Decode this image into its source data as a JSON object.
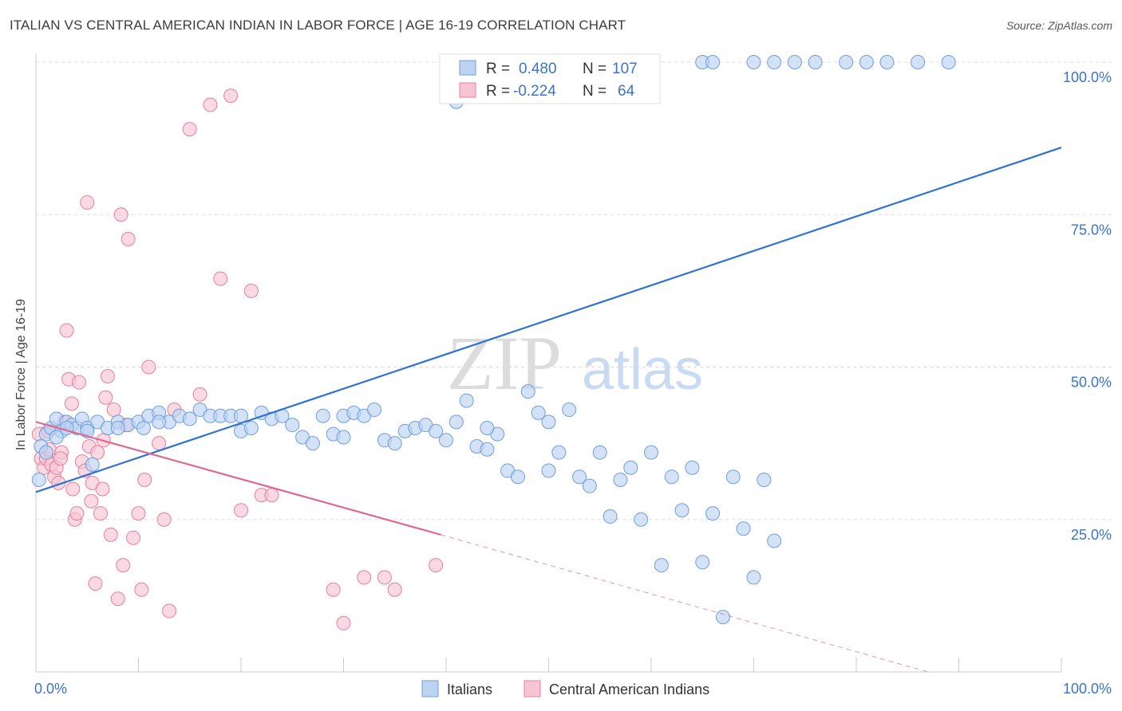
{
  "title": "ITALIAN VS CENTRAL AMERICAN INDIAN IN LABOR FORCE | AGE 16-19 CORRELATION CHART",
  "source": "Source: ZipAtlas.com",
  "watermark": {
    "zip": "ZIP",
    "atlas": "atlas"
  },
  "colors": {
    "blue": "#6f9fde",
    "blue_fill": "#bcd3f2",
    "blue_line": "#2e72d2",
    "pink": "#e77fa0",
    "pink_fill": "#f7c4d3",
    "pink_line": "#e06890",
    "axis_text": "#3a74c9",
    "grid": "#dddddd"
  },
  "legend_box": {
    "rows": [
      {
        "r_label": "R =",
        "r_value": "0.480",
        "n_label": "N =",
        "n_value": "107",
        "color": "blue"
      },
      {
        "r_label": "R =",
        "r_value": "-0.224",
        "n_label": "N =",
        "n_value": "64",
        "color": "pink"
      }
    ]
  },
  "chart_data": {
    "type": "scatter",
    "title": "ITALIAN VS CENTRAL AMERICAN INDIAN IN LABOR FORCE | AGE 16-19 CORRELATION CHART",
    "xlabel": "",
    "ylabel": "In Labor Force | Age 16-19",
    "xlim": [
      0,
      100
    ],
    "ylim": [
      0,
      100
    ],
    "x_tick_labels": [
      "0.0%",
      "100.0%"
    ],
    "y_tick_labels": [
      "25.0%",
      "50.0%",
      "75.0%",
      "100.0%"
    ],
    "y_ticks": [
      25,
      50,
      75,
      100
    ],
    "grid": true,
    "legend_position": "bottom-center",
    "series": [
      {
        "name": "Italians",
        "color": "blue",
        "R": 0.48,
        "N": 107,
        "trend": {
          "x": [
            0,
            100
          ],
          "y": [
            29.5,
            86.0
          ],
          "dashed_from": null
        },
        "points": [
          [
            0.3,
            31.5
          ],
          [
            0.5,
            37
          ],
          [
            1,
            39
          ],
          [
            1.5,
            40
          ],
          [
            2,
            41.5
          ],
          [
            2.5,
            39.5
          ],
          [
            3,
            41
          ],
          [
            3.5,
            40.5
          ],
          [
            4,
            40
          ],
          [
            4.5,
            41.5
          ],
          [
            5,
            40
          ],
          [
            5.5,
            34
          ],
          [
            6,
            41
          ],
          [
            7,
            40
          ],
          [
            8,
            41
          ],
          [
            9,
            40.5
          ],
          [
            10,
            41
          ],
          [
            10.5,
            40
          ],
          [
            11,
            42
          ],
          [
            12,
            42.5
          ],
          [
            13,
            41
          ],
          [
            14,
            42
          ],
          [
            15,
            41.5
          ],
          [
            16,
            43
          ],
          [
            17,
            42
          ],
          [
            18,
            42
          ],
          [
            19,
            42
          ],
          [
            20,
            39.5
          ],
          [
            21,
            40
          ],
          [
            22,
            42.5
          ],
          [
            23,
            41.5
          ],
          [
            24,
            42
          ],
          [
            25,
            40.5
          ],
          [
            26,
            38.5
          ],
          [
            27,
            37.5
          ],
          [
            28,
            42
          ],
          [
            29,
            39
          ],
          [
            30,
            42
          ],
          [
            31,
            42.5
          ],
          [
            32,
            42
          ],
          [
            33,
            43
          ],
          [
            34,
            38
          ],
          [
            35,
            37.5
          ],
          [
            36,
            39.5
          ],
          [
            37,
            40
          ],
          [
            38,
            40.5
          ],
          [
            39,
            39.5
          ],
          [
            40,
            38
          ],
          [
            41,
            41
          ],
          [
            42,
            44.5
          ],
          [
            43,
            37
          ],
          [
            44,
            36.5
          ],
          [
            45,
            39
          ],
          [
            46,
            33
          ],
          [
            47,
            32
          ],
          [
            48,
            46
          ],
          [
            49,
            42.5
          ],
          [
            50,
            41
          ],
          [
            51,
            36
          ],
          [
            52,
            43
          ],
          [
            53,
            32
          ],
          [
            54,
            30.5
          ],
          [
            55,
            36
          ],
          [
            56,
            25.5
          ],
          [
            57,
            31.5
          ],
          [
            58,
            33.5
          ],
          [
            59,
            25
          ],
          [
            60,
            36
          ],
          [
            61,
            17.5
          ],
          [
            62,
            32
          ],
          [
            63,
            26.5
          ],
          [
            64,
            33.5
          ],
          [
            65,
            18
          ],
          [
            66,
            26
          ],
          [
            67,
            9
          ],
          [
            68,
            32
          ],
          [
            69,
            23.5
          ],
          [
            70,
            15.5
          ],
          [
            71,
            31.5
          ],
          [
            72,
            21.5
          ],
          [
            41,
            93.5
          ],
          [
            51,
            100
          ],
          [
            53,
            100
          ],
          [
            55,
            100
          ],
          [
            57,
            100
          ],
          [
            59,
            100
          ],
          [
            65,
            100
          ],
          [
            66,
            100
          ],
          [
            70,
            100
          ],
          [
            72,
            100
          ],
          [
            74,
            100
          ],
          [
            76,
            100
          ],
          [
            79,
            100
          ],
          [
            81,
            100
          ],
          [
            83,
            100
          ],
          [
            86,
            100
          ],
          [
            89,
            100
          ],
          [
            5,
            39.5
          ],
          [
            3,
            40
          ],
          [
            2,
            38.5
          ],
          [
            1,
            36
          ],
          [
            8,
            40
          ],
          [
            12,
            41
          ],
          [
            20,
            42
          ],
          [
            30,
            38.5
          ],
          [
            44,
            40
          ],
          [
            50,
            33
          ]
        ]
      },
      {
        "name": "Central American Indians",
        "color": "pink",
        "R": -0.224,
        "N": 64,
        "trend": {
          "x": [
            0,
            39.5
          ],
          "y": [
            41,
            22.5
          ],
          "dashed_from": 39.5,
          "dashed_to": [
            87,
            0
          ]
        },
        "points": [
          [
            0.3,
            39
          ],
          [
            0.5,
            35
          ],
          [
            0.8,
            33.5
          ],
          [
            1,
            35
          ],
          [
            1.3,
            36.5
          ],
          [
            1.5,
            34
          ],
          [
            1.8,
            32
          ],
          [
            2,
            33.5
          ],
          [
            2.2,
            31
          ],
          [
            2.5,
            36
          ],
          [
            2.8,
            41
          ],
          [
            3,
            56
          ],
          [
            3.2,
            48
          ],
          [
            3.5,
            44
          ],
          [
            3.8,
            25
          ],
          [
            4,
            26
          ],
          [
            4.2,
            47.5
          ],
          [
            4.5,
            34.5
          ],
          [
            4.8,
            33
          ],
          [
            5,
            77
          ],
          [
            5.2,
            37
          ],
          [
            5.5,
            31
          ],
          [
            5.8,
            14.5
          ],
          [
            6,
            36
          ],
          [
            6.3,
            26
          ],
          [
            6.5,
            30
          ],
          [
            6.8,
            45
          ],
          [
            7,
            48.5
          ],
          [
            7.3,
            22.5
          ],
          [
            7.6,
            43
          ],
          [
            8,
            12
          ],
          [
            8.3,
            75
          ],
          [
            8.5,
            17.5
          ],
          [
            8.8,
            40.5
          ],
          [
            9,
            71
          ],
          [
            9.5,
            22
          ],
          [
            10,
            26
          ],
          [
            10.3,
            13.5
          ],
          [
            10.6,
            31.5
          ],
          [
            11,
            50
          ],
          [
            12,
            37.5
          ],
          [
            12.5,
            25
          ],
          [
            13,
            10
          ],
          [
            13.5,
            43
          ],
          [
            15,
            89
          ],
          [
            16,
            45.5
          ],
          [
            17,
            93
          ],
          [
            18,
            64.5
          ],
          [
            19,
            94.5
          ],
          [
            20,
            26.5
          ],
          [
            21,
            62.5
          ],
          [
            22,
            29
          ],
          [
            23,
            29
          ],
          [
            29,
            13.5
          ],
          [
            30,
            8
          ],
          [
            32,
            15.5
          ],
          [
            34,
            15.5
          ],
          [
            35,
            13.5
          ],
          [
            39,
            17.5
          ],
          [
            1.2,
            39.5
          ],
          [
            2.4,
            35
          ],
          [
            3.6,
            30
          ],
          [
            5.4,
            28
          ],
          [
            6.6,
            38
          ]
        ]
      }
    ]
  }
}
